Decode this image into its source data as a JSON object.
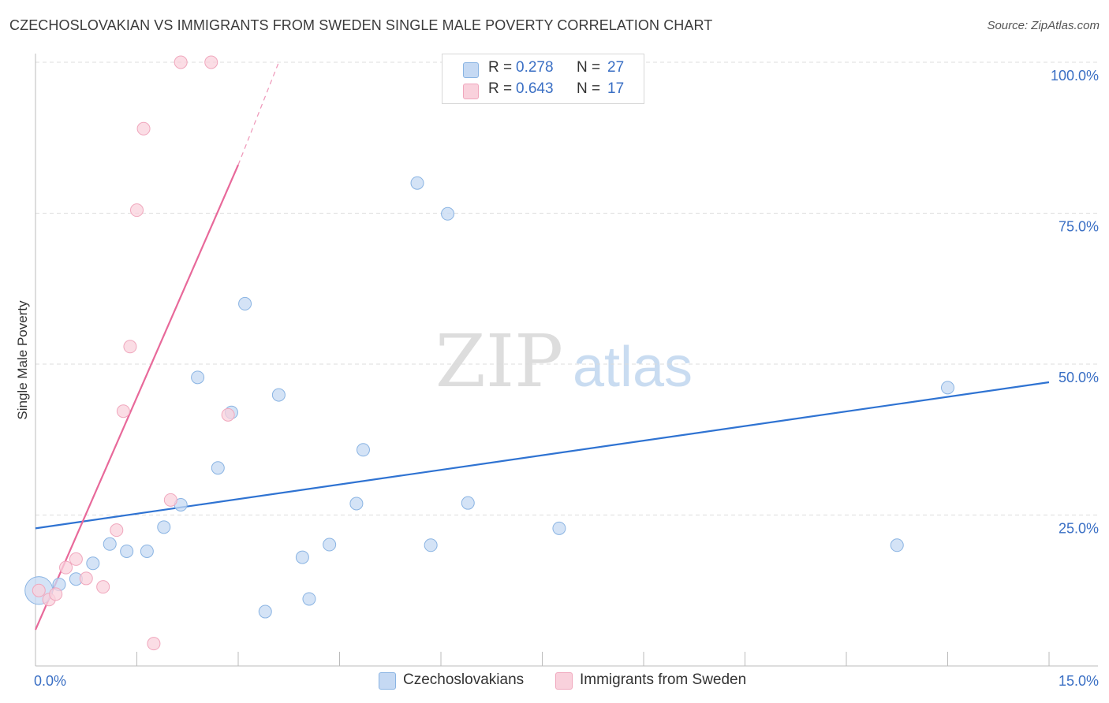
{
  "title": "CZECHOSLOVAKIAN VS IMMIGRANTS FROM SWEDEN SINGLE MALE POVERTY CORRELATION CHART",
  "source": "Source: ZipAtlas.com",
  "watermark": {
    "zip": "ZIP",
    "atlas": "atlas"
  },
  "stats": [
    {
      "r_label": "R =",
      "r_value": "0.278",
      "n_label": "N =",
      "n_value": "27"
    },
    {
      "r_label": "R =",
      "r_value": "0.643",
      "n_label": "N =",
      "n_value": "17"
    }
  ],
  "legend": {
    "series1": "Czechoslovakians",
    "series2": "Immigrants from Sweden"
  },
  "colors": {
    "series1_fill": "#c5d9f3",
    "series1_stroke": "#8ab4e3",
    "series1_line": "#2f73d2",
    "series2_fill": "#f9d1dc",
    "series2_stroke": "#f0a7bd",
    "series2_line": "#e8699a",
    "accent_text": "#3a6fc4",
    "grid": "#dcdcdc"
  },
  "chart_data": {
    "type": "scatter",
    "title": "CZECHOSLOVAKIAN VS IMMIGRANTS FROM SWEDEN SINGLE MALE POVERTY CORRELATION CHART",
    "xlabel": "",
    "ylabel": "Single Male Poverty",
    "xlim": [
      0,
      15
    ],
    "ylim": [
      0,
      100
    ],
    "x_tick_labels": [
      {
        "value": 0,
        "label": "0.0%"
      },
      {
        "value": 15,
        "label": "15.0%"
      }
    ],
    "y_tick_labels": [
      {
        "value": 25,
        "label": "25.0%"
      },
      {
        "value": 50,
        "label": "50.0%"
      },
      {
        "value": 75,
        "label": "75.0%"
      },
      {
        "value": 100,
        "label": "100.0%"
      }
    ],
    "grid": true,
    "legend_position": "bottom",
    "series": [
      {
        "name": "Czechoslovakians",
        "r": 0.278,
        "n": 27,
        "trend": {
          "x": [
            0,
            15
          ],
          "y": [
            22.8,
            47.0
          ]
        },
        "points": [
          {
            "x": 0.05,
            "y": 12.5,
            "size": 2.2
          },
          {
            "x": 0.35,
            "y": 13.5
          },
          {
            "x": 0.6,
            "y": 14.4
          },
          {
            "x": 0.85,
            "y": 17.0
          },
          {
            "x": 1.1,
            "y": 20.2
          },
          {
            "x": 1.35,
            "y": 19.0
          },
          {
            "x": 1.65,
            "y": 19.0
          },
          {
            "x": 1.9,
            "y": 23.0
          },
          {
            "x": 2.15,
            "y": 26.7
          },
          {
            "x": 2.4,
            "y": 47.8
          },
          {
            "x": 2.7,
            "y": 32.8
          },
          {
            "x": 2.9,
            "y": 42.0
          },
          {
            "x": 3.1,
            "y": 60.0
          },
          {
            "x": 3.4,
            "y": 9.0
          },
          {
            "x": 3.6,
            "y": 44.9
          },
          {
            "x": 3.95,
            "y": 18.0
          },
          {
            "x": 4.05,
            "y": 11.1
          },
          {
            "x": 4.35,
            "y": 20.1
          },
          {
            "x": 4.75,
            "y": 26.9
          },
          {
            "x": 4.85,
            "y": 35.8
          },
          {
            "x": 5.65,
            "y": 80.0
          },
          {
            "x": 5.85,
            "y": 20.0
          },
          {
            "x": 6.1,
            "y": 74.9
          },
          {
            "x": 6.4,
            "y": 27.0
          },
          {
            "x": 7.75,
            "y": 22.8
          },
          {
            "x": 12.75,
            "y": 20.0
          },
          {
            "x": 13.5,
            "y": 46.1
          }
        ]
      },
      {
        "name": "Immigrants from Sweden",
        "r": 0.643,
        "n": 17,
        "trend": {
          "x": [
            0,
            3.0
          ],
          "y": [
            6.0,
            83.0
          ]
        },
        "trend_dashed": {
          "x": [
            3.0,
            3.6
          ],
          "y": [
            83.0,
            100.0
          ]
        },
        "points": [
          {
            "x": 0.05,
            "y": 12.5
          },
          {
            "x": 0.2,
            "y": 11.0
          },
          {
            "x": 0.3,
            "y": 11.9
          },
          {
            "x": 0.45,
            "y": 16.3
          },
          {
            "x": 0.6,
            "y": 17.7
          },
          {
            "x": 0.75,
            "y": 14.5
          },
          {
            "x": 1.0,
            "y": 13.1
          },
          {
            "x": 1.2,
            "y": 22.5
          },
          {
            "x": 1.3,
            "y": 42.2
          },
          {
            "x": 1.4,
            "y": 52.9
          },
          {
            "x": 1.5,
            "y": 75.5
          },
          {
            "x": 1.6,
            "y": 89.0
          },
          {
            "x": 1.75,
            "y": 3.7
          },
          {
            "x": 2.0,
            "y": 27.5
          },
          {
            "x": 2.15,
            "y": 100.0
          },
          {
            "x": 2.6,
            "y": 100.0
          },
          {
            "x": 2.85,
            "y": 41.6
          }
        ]
      }
    ]
  }
}
